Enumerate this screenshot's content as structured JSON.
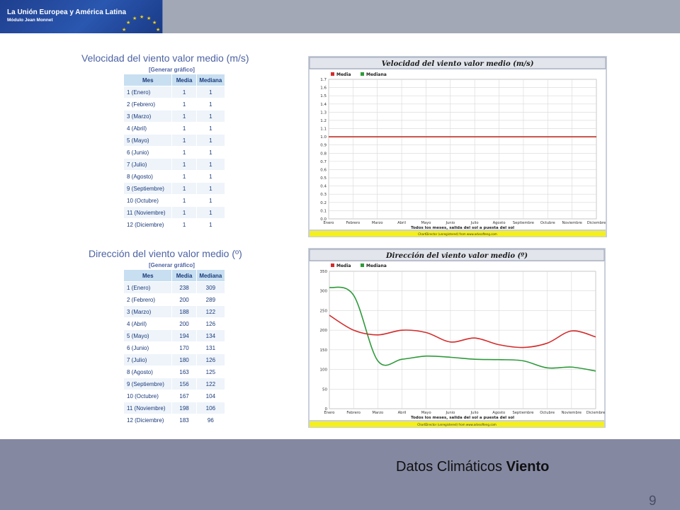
{
  "header": {
    "logo_title": "La Unión Europea y América Latina",
    "logo_subtitle": "Módulo Jean Monnet"
  },
  "footer": {
    "title_prefix": "Datos Climáticos",
    "title_bold": "Viento",
    "page_number": "9"
  },
  "tables": [
    {
      "title": "Velocidad del viento valor medio (m/s)",
      "link": "[Generar gráfico]",
      "headers": [
        "Mes",
        "Media",
        "Mediana"
      ],
      "rows": [
        [
          "1 (Enero)",
          "1",
          "1"
        ],
        [
          "2 (Febrero)",
          "1",
          "1"
        ],
        [
          "3 (Marzo)",
          "1",
          "1"
        ],
        [
          "4 (Abril)",
          "1",
          "1"
        ],
        [
          "5 (Mayo)",
          "1",
          "1"
        ],
        [
          "6 (Junio)",
          "1",
          "1"
        ],
        [
          "7 (Julio)",
          "1",
          "1"
        ],
        [
          "8 (Agosto)",
          "1",
          "1"
        ],
        [
          "9 (Septiembre)",
          "1",
          "1"
        ],
        [
          "10 (Octubre)",
          "1",
          "1"
        ],
        [
          "11 (Noviembre)",
          "1",
          "1"
        ],
        [
          "12 (Diciembre)",
          "1",
          "1"
        ]
      ]
    },
    {
      "title": "Dirección del viento valor medio (º)",
      "link": "[Generar gráfico]",
      "headers": [
        "Mes",
        "Media",
        "Mediana"
      ],
      "rows": [
        [
          "1 (Enero)",
          "238",
          "309"
        ],
        [
          "2 (Febrero)",
          "200",
          "289"
        ],
        [
          "3 (Marzo)",
          "188",
          "122"
        ],
        [
          "4 (Abril)",
          "200",
          "126"
        ],
        [
          "5 (Mayo)",
          "194",
          "134"
        ],
        [
          "6 (Junio)",
          "170",
          "131"
        ],
        [
          "7 (Julio)",
          "180",
          "126"
        ],
        [
          "8 (Agosto)",
          "163",
          "125"
        ],
        [
          "9 (Septiembre)",
          "156",
          "122"
        ],
        [
          "10 (Octubre)",
          "167",
          "104"
        ],
        [
          "11 (Noviembre)",
          "198",
          "106"
        ],
        [
          "12 (Diciembre)",
          "183",
          "96"
        ]
      ]
    }
  ],
  "chart_data": [
    {
      "type": "line",
      "title": "Velocidad del viento valor medio (m/s)",
      "xlabel": "Todos los meses, salida del sol a puesta del sol",
      "ylabel": "",
      "credit": "ChartDirector (unregistered) from www.advsofteng.com",
      "categories": [
        "Enero",
        "Febrero",
        "Marzo",
        "Abril",
        "Mayo",
        "Junio",
        "Julio",
        "Agosto",
        "Septiembre",
        "Octubre",
        "Noviembre",
        "Diciembre"
      ],
      "ylim": [
        0,
        1.7
      ],
      "yticks": [
        "0.0",
        "0.1",
        "0.2",
        "0.3",
        "0.4",
        "0.5",
        "0.6",
        "0.7",
        "0.8",
        "0.9",
        "1.0",
        "1.1",
        "1.2",
        "1.3",
        "1.4",
        "1.5",
        "1.6",
        "1.7"
      ],
      "legend_position": "top-left",
      "grid": true,
      "series": [
        {
          "name": "Media",
          "color": "#d42b2b",
          "values": [
            1,
            1,
            1,
            1,
            1,
            1,
            1,
            1,
            1,
            1,
            1,
            1
          ]
        },
        {
          "name": "Mediana",
          "color": "#2e9a3a",
          "values": [
            1,
            1,
            1,
            1,
            1,
            1,
            1,
            1,
            1,
            1,
            1,
            1
          ]
        }
      ]
    },
    {
      "type": "line",
      "title": "Dirección del viento valor medio (º)",
      "xlabel": "Todos los meses, salida del sol a puesta del sol",
      "ylabel": "",
      "credit": "ChartDirector (unregistered) from www.advsofteng.com",
      "categories": [
        "Enero",
        "Febrero",
        "Marzo",
        "Abril",
        "Mayo",
        "Junio",
        "Julio",
        "Agosto",
        "Septiembre",
        "Octubre",
        "Noviembre",
        "Diciembre"
      ],
      "ylim": [
        0,
        350
      ],
      "yticks": [
        "0",
        "50",
        "100",
        "150",
        "200",
        "250",
        "300",
        "350"
      ],
      "legend_position": "top-left",
      "grid": true,
      "series": [
        {
          "name": "Media",
          "color": "#d42b2b",
          "values": [
            238,
            200,
            188,
            200,
            194,
            170,
            180,
            163,
            156,
            167,
            198,
            183
          ]
        },
        {
          "name": "Mediana",
          "color": "#2e9a3a",
          "values": [
            309,
            289,
            122,
            126,
            134,
            131,
            126,
            125,
            122,
            104,
            106,
            96
          ]
        }
      ]
    }
  ]
}
